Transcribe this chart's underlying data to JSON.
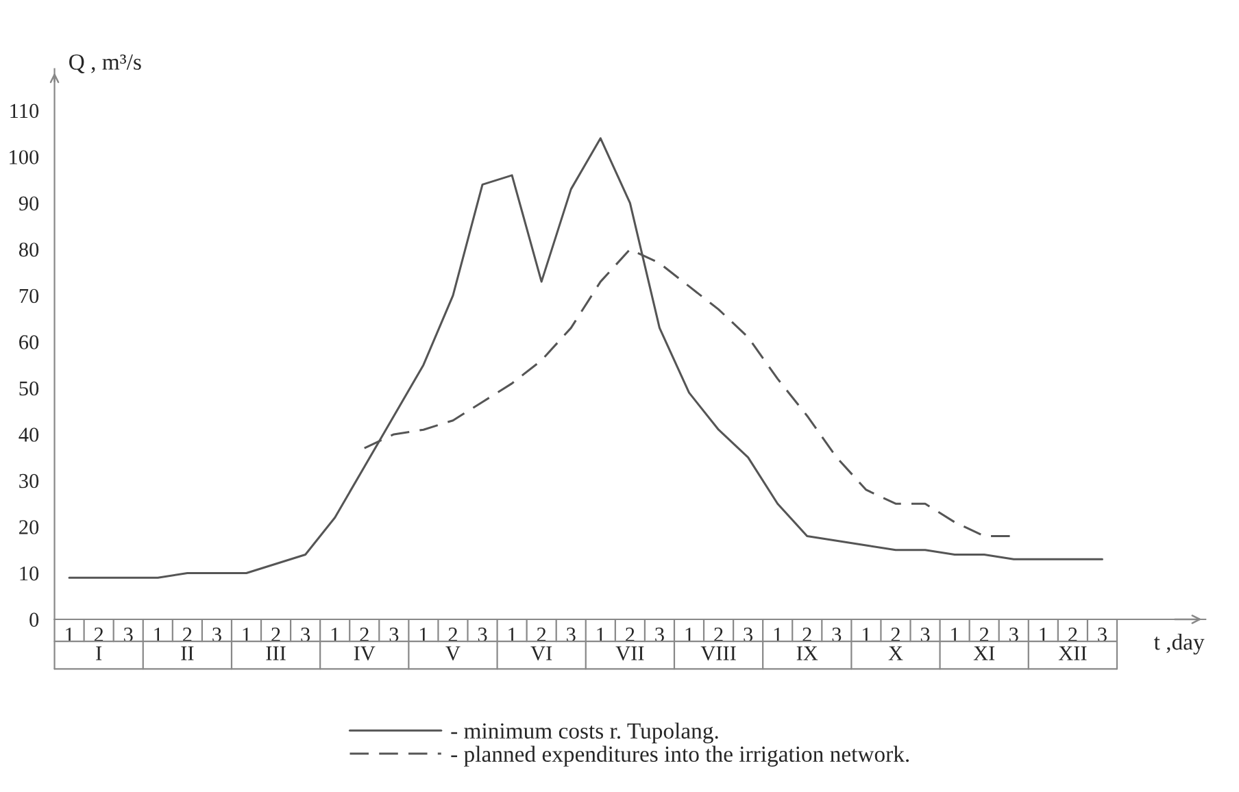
{
  "chart_data": {
    "type": "line",
    "xlabel": "t ,day",
    "ylabel": "Q , m³/s",
    "categories": [
      "1",
      "2",
      "3",
      "1",
      "2",
      "3",
      "1",
      "2",
      "3",
      "1",
      "2",
      "3",
      "1",
      "2",
      "3",
      "1",
      "2",
      "3",
      "1",
      "2",
      "3",
      "1",
      "2",
      "3",
      "1",
      "2",
      "3",
      "1",
      "2",
      "3",
      "1",
      "2",
      "3",
      "1",
      "2",
      "3"
    ],
    "annotations": [
      "I",
      "II",
      "III",
      "IV",
      "V",
      "VI",
      "VII",
      "VIII",
      "IX",
      "X",
      "XI",
      "XII"
    ],
    "ylim": [
      0,
      119
    ],
    "yticks": [
      0,
      10,
      20,
      30,
      40,
      50,
      60,
      70,
      80,
      90,
      100,
      110
    ],
    "legend": "bottom",
    "marker": "none",
    "series": [
      {
        "name": "- minimum costs r. Tupolang.",
        "color": "#555555",
        "line_style": "solid",
        "values": [
          9,
          9,
          9,
          9,
          10,
          10,
          10,
          12,
          14,
          22,
          33,
          44,
          55,
          70,
          94,
          96,
          73,
          93,
          104,
          90,
          63,
          49,
          41,
          35,
          25,
          18,
          17,
          16,
          15,
          15,
          14,
          14,
          13,
          13,
          13,
          13
        ]
      },
      {
        "name": "- planned expenditures into the irrigation network.",
        "color": "#555555",
        "line_style": "dashed",
        "values": [
          null,
          null,
          null,
          null,
          null,
          null,
          null,
          null,
          null,
          null,
          37,
          40,
          41,
          43,
          47,
          51,
          56,
          63,
          73,
          80,
          77,
          72,
          67,
          61,
          52,
          44,
          35,
          28,
          25,
          25,
          21,
          18,
          18,
          null,
          null,
          null
        ]
      }
    ]
  }
}
